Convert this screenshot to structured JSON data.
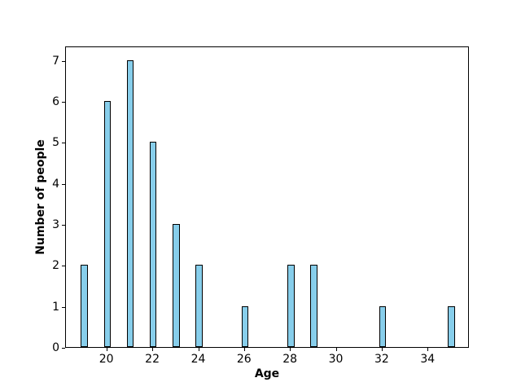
{
  "chart_data": {
    "type": "bar",
    "xlabel": "Age",
    "ylabel": "Number of people",
    "categories": [
      19,
      20,
      21,
      22,
      23,
      24,
      26,
      28,
      29,
      32,
      35
    ],
    "values": [
      2,
      6,
      7,
      5,
      3,
      2,
      1,
      2,
      2,
      1,
      1
    ],
    "bar_width": 0.3,
    "bar_color": "#87CEEB",
    "bar_edge_color": "#000000",
    "xlim": [
      18.2,
      35.8
    ],
    "ylim": [
      0,
      7.35
    ],
    "xticks": [
      20,
      22,
      24,
      26,
      28,
      30,
      32,
      34
    ],
    "yticks": [
      0,
      1,
      2,
      3,
      4,
      5,
      6,
      7
    ],
    "grid": false,
    "legend": "none",
    "background_color": "#ffffff",
    "axis_color": "#000000"
  }
}
